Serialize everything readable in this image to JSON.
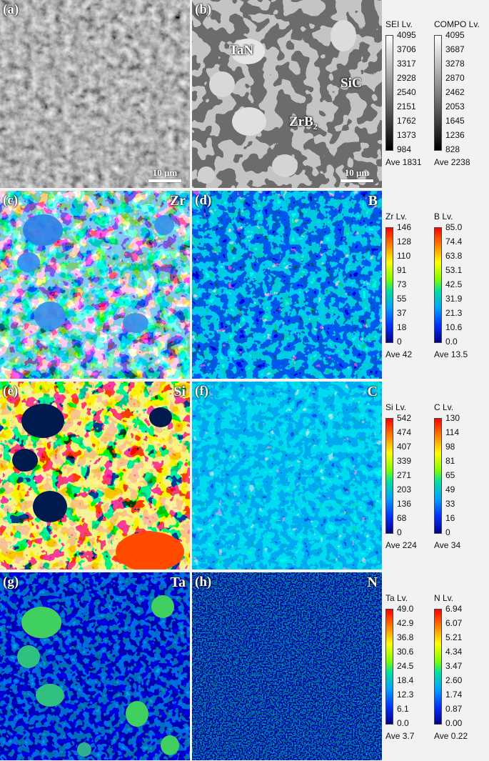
{
  "panels": [
    {
      "id": "a",
      "label": "(a)",
      "element": "",
      "scale": "10 μm"
    },
    {
      "id": "b",
      "label": "(b)",
      "element": "",
      "scale": "10 μm",
      "phases": [
        "TaN",
        "SiC",
        "ZrB2"
      ]
    },
    {
      "id": "c",
      "label": "(c)",
      "element": "Zr"
    },
    {
      "id": "d",
      "label": "(d)",
      "element": "B"
    },
    {
      "id": "e",
      "label": "(e)",
      "element": "Si"
    },
    {
      "id": "f",
      "label": "(f)",
      "element": "C"
    },
    {
      "id": "g",
      "label": "(g)",
      "element": "Ta"
    },
    {
      "id": "h",
      "label": "(h)",
      "element": "N"
    }
  ],
  "phase_labels": {
    "tan": "TaN",
    "sic": "SiC",
    "zrb2_main": "ZrB",
    "zrb2_sub": "2"
  },
  "legends": [
    {
      "title": "SEI  Lv.",
      "ticks": [
        "4095",
        "3706",
        "3317",
        "2928",
        "2540",
        "2151",
        "1762",
        "1373",
        "984"
      ],
      "ave": "Ave 1831",
      "colormap": "gray"
    },
    {
      "title": "COMPO  Lv.",
      "ticks": [
        "4095",
        "3687",
        "3278",
        "2870",
        "2462",
        "2053",
        "1645",
        "1236",
        "828"
      ],
      "ave": "Ave 2238",
      "colormap": "gray"
    },
    {
      "title": "Zr  Lv.",
      "ticks": [
        "146",
        "128",
        "110",
        "91",
        "73",
        "55",
        "37",
        "18",
        "0"
      ],
      "ave": "Ave 42",
      "colormap": "jet"
    },
    {
      "title": "B  Lv.",
      "ticks": [
        "85.0",
        "74.4",
        "63.8",
        "53.1",
        "42.5",
        "31.9",
        "21.3",
        "10.6",
        "0.0"
      ],
      "ave": "Ave 13.5",
      "colormap": "jet"
    },
    {
      "title": "Si  Lv.",
      "ticks": [
        "542",
        "474",
        "407",
        "339",
        "271",
        "203",
        "136",
        "68",
        "0"
      ],
      "ave": "Ave 224",
      "colormap": "jet"
    },
    {
      "title": "C  Lv.",
      "ticks": [
        "130",
        "114",
        "98",
        "81",
        "65",
        "49",
        "33",
        "16",
        "0"
      ],
      "ave": "Ave 34",
      "colormap": "jet"
    },
    {
      "title": "Ta  Lv.",
      "ticks": [
        "49.0",
        "42.9",
        "36.8",
        "30.6",
        "24.5",
        "18.4",
        "12.3",
        "6.1",
        "0.0"
      ],
      "ave": "Ave 3.7",
      "colormap": "jet"
    },
    {
      "title": "N  Lv.",
      "ticks": [
        "6.94",
        "6.07",
        "5.21",
        "4.34",
        "3.47",
        "2.60",
        "1.74",
        "0.87",
        "0.00"
      ],
      "ave": "Ave 0.22",
      "colormap": "jet"
    }
  ]
}
